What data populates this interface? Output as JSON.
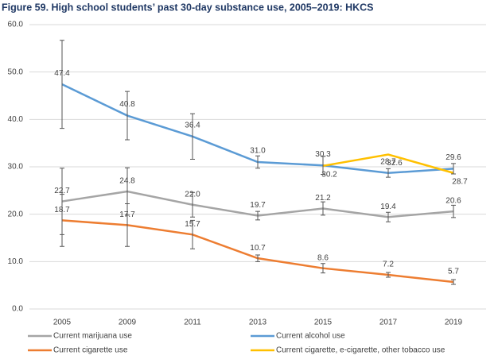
{
  "chart_data": {
    "type": "line",
    "title": "Figure 59. High school students’ past 30-day substance use, 2005–2019: HKCS",
    "categories": [
      "2005",
      "2009",
      "2011",
      "2013",
      "2015",
      "2017",
      "2019"
    ],
    "ylim": [
      0,
      60
    ],
    "yticks": [
      {
        "value": 0,
        "label": "0.0"
      },
      {
        "value": 10,
        "label": "10.0"
      },
      {
        "value": 20,
        "label": "20.0"
      },
      {
        "value": 30,
        "label": "30.0"
      },
      {
        "value": 40,
        "label": "40.0"
      },
      {
        "value": 50,
        "label": "50.0"
      },
      {
        "value": 60,
        "label": "60.0"
      }
    ],
    "grid": true,
    "series": [
      {
        "name": "Current marijuana use",
        "color": "#a5a5a5",
        "values": [
          22.7,
          24.8,
          22.0,
          19.7,
          21.2,
          19.4,
          20.6
        ],
        "value_labels": [
          "22.7",
          "24.8",
          "22.0",
          "19.7",
          "21.2",
          "19.4",
          "20.6"
        ],
        "errors": [
          7.0,
          5.0,
          2.6,
          0.9,
          1.4,
          1.0,
          1.3
        ]
      },
      {
        "name": "Current alcohol use",
        "color": "#5b9bd5",
        "values": [
          47.4,
          40.8,
          36.4,
          31.0,
          30.3,
          28.7,
          29.6
        ],
        "value_labels": [
          "47.4",
          "40.8",
          "36.4",
          "31.0",
          "30.3",
          "28.7",
          "29.6"
        ],
        "errors": [
          9.3,
          5.1,
          4.8,
          1.3,
          1.9,
          0.9,
          1.1
        ]
      },
      {
        "name": "Current cigarette use",
        "color": "#ed7d31",
        "values": [
          18.7,
          17.7,
          15.7,
          10.7,
          8.6,
          7.2,
          5.7
        ],
        "value_labels": [
          "18.7",
          "17.7",
          "15.7",
          "10.7",
          "8.6",
          "7.2",
          "5.7"
        ],
        "errors": [
          5.5,
          4.5,
          3.0,
          0.7,
          1.0,
          0.5,
          0.5
        ]
      },
      {
        "name": "Current cigarette, e-cigarette, other tobacco use",
        "color": "#ffc000",
        "values": [
          null,
          null,
          null,
          null,
          30.2,
          32.6,
          28.7
        ],
        "value_labels": [
          null,
          null,
          null,
          null,
          "30.2",
          "32.6",
          "28.7"
        ],
        "errors": [
          null,
          null,
          null,
          null,
          null,
          null,
          null
        ]
      }
    ]
  }
}
